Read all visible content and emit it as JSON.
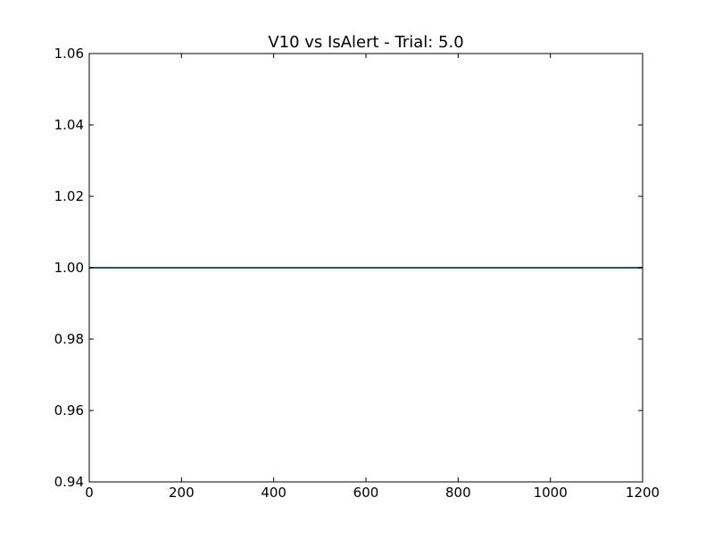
{
  "chart_data": {
    "type": "line",
    "title": "V10 vs IsAlert - Trial: 5.0",
    "xlabel": "",
    "ylabel": "",
    "xlim": [
      0,
      1200
    ],
    "ylim": [
      0.94,
      1.06
    ],
    "xticks": [
      0,
      200,
      400,
      600,
      800,
      1000,
      1200
    ],
    "xtick_labels": [
      "0",
      "200",
      "400",
      "600",
      "800",
      "1000",
      "1200"
    ],
    "yticks": [
      0.94,
      0.96,
      0.98,
      1.0,
      1.02,
      1.04,
      1.06
    ],
    "ytick_labels": [
      "0.94",
      "0.96",
      "0.98",
      "1.00",
      "1.02",
      "1.04",
      "1.06"
    ],
    "grid": false,
    "legend": "none",
    "series": [
      {
        "x": [
          0,
          1200
        ],
        "y": [
          1.0,
          1.0
        ],
        "color": "#1f5f5b"
      }
    ]
  }
}
